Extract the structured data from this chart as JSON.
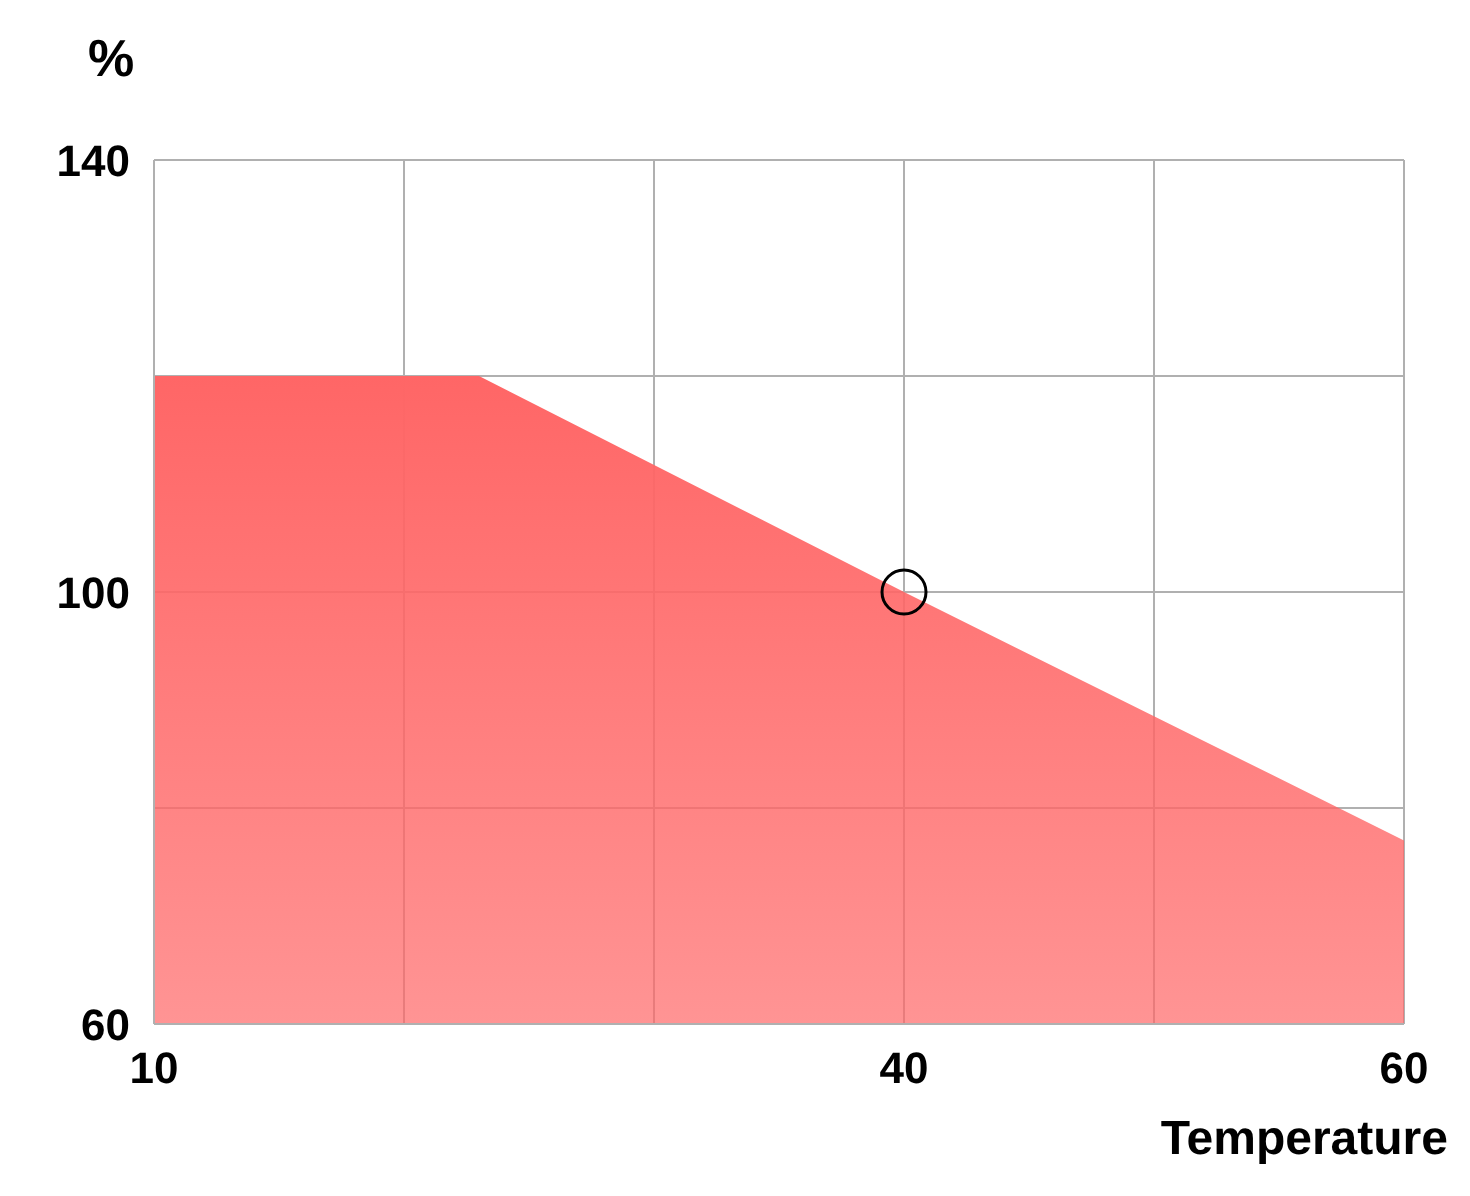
{
  "chart_data": {
    "type": "area",
    "xlabel": "Temperature",
    "ylabel": "%",
    "xlim": [
      10,
      60
    ],
    "ylim": [
      60,
      140
    ],
    "xticks": [
      10,
      {
        "value": 20,
        "label": null
      },
      {
        "value": 30,
        "label": null
      },
      40,
      {
        "value": 50,
        "label": null
      },
      60
    ],
    "yticks": [
      60,
      {
        "value": 80,
        "label": null
      },
      100,
      {
        "value": 120,
        "label": null
      },
      140
    ],
    "grid": true,
    "series": [
      {
        "color": "#ff6666",
        "x": [
          10,
          23,
          40,
          60
        ],
        "values": [
          120,
          120,
          100,
          77
        ]
      },
      {
        "type": "scatter",
        "color": "#000000",
        "marker": "circle",
        "x": [
          40
        ],
        "values": [
          100
        ]
      }
    ]
  }
}
